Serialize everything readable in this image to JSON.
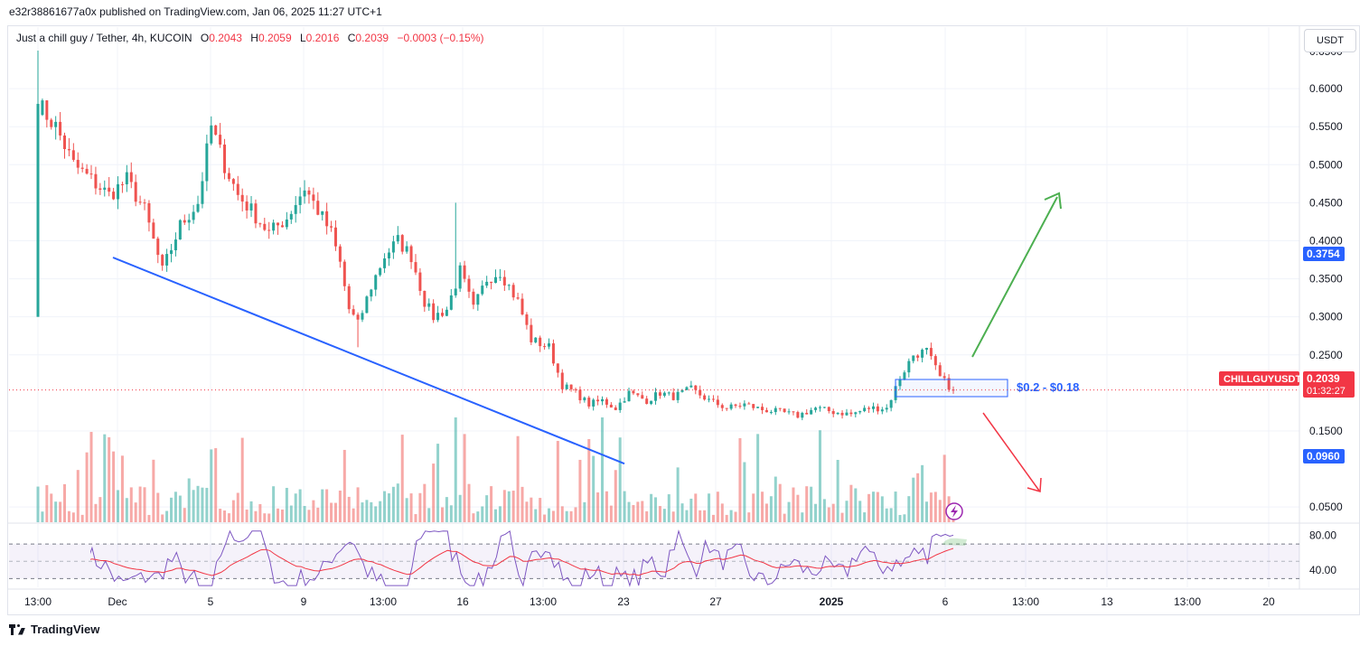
{
  "header": {
    "publish_line": "e32r38861677a0x published on TradingView.com, Jan 06, 2025 11:27 UTC+1"
  },
  "legend": {
    "symbol": "Just a chill guy / Tether, 4h, KUCOIN",
    "o_label": "O",
    "o": "0.2043",
    "h_label": "H",
    "h": "0.2059",
    "l_label": "L",
    "l": "0.2016",
    "c_label": "C",
    "c": "0.2039",
    "change": "−0.0003 (−0.15%)"
  },
  "currency_button": "USDT",
  "annotations": {
    "zone_label": "$0.2 - $0.18"
  },
  "price_badges": {
    "top": "0.3754",
    "symbol": "CHILLGUYUSDT",
    "last": "0.2039",
    "countdown": "01:32:27",
    "bottom": "0.0960"
  },
  "footer": {
    "brand": "TradingView"
  },
  "colors": {
    "up": "#26a69a",
    "down": "#ef5350",
    "trend": "#2962ff",
    "arrow_up": "#4caf50",
    "arrow_down": "#f23645",
    "rsi": "#7e57c2",
    "rsi_ma": "#f23645",
    "badge_blue": "#2962ff",
    "badge_red": "#f23645"
  },
  "chart_data": [
    {
      "type": "candlestick",
      "timeframe": "4h",
      "y_axis": {
        "ticks": [
          "0.6000",
          "0.5500",
          "0.5000",
          "0.4500",
          "0.4000",
          "0.3500",
          "0.3000",
          "0.2500",
          "0.1500",
          "0.0500"
        ],
        "ylim": [
          0.03,
          0.65
        ]
      },
      "x_axis": {
        "ticks": [
          "13:00",
          "Dec",
          "5",
          "9",
          "13:00",
          "16",
          "13:00",
          "23",
          "27",
          "2025",
          "6",
          "13:00",
          "13",
          "13:00",
          "20"
        ]
      },
      "last_price": 0.2039,
      "path_points": [
        [
          0,
          0.58
        ],
        [
          4,
          0.55
        ],
        [
          8,
          0.5
        ],
        [
          12,
          0.48
        ],
        [
          16,
          0.46
        ],
        [
          20,
          0.48
        ],
        [
          24,
          0.44
        ],
        [
          28,
          0.36
        ],
        [
          32,
          0.42
        ],
        [
          36,
          0.45
        ],
        [
          39,
          0.55
        ],
        [
          42,
          0.5
        ],
        [
          45,
          0.46
        ],
        [
          48,
          0.44
        ],
        [
          52,
          0.41
        ],
        [
          56,
          0.43
        ],
        [
          60,
          0.47
        ],
        [
          63,
          0.44
        ],
        [
          66,
          0.41
        ],
        [
          68,
          0.37
        ],
        [
          70,
          0.31
        ],
        [
          72,
          0.29
        ],
        [
          75,
          0.34
        ],
        [
          78,
          0.38
        ],
        [
          81,
          0.4
        ],
        [
          84,
          0.38
        ],
        [
          87,
          0.32
        ],
        [
          89,
          0.3
        ],
        [
          92,
          0.31
        ],
        [
          95,
          0.36
        ],
        [
          98,
          0.31
        ],
        [
          101,
          0.35
        ],
        [
          104,
          0.36
        ],
        [
          108,
          0.32
        ],
        [
          111,
          0.27
        ],
        [
          115,
          0.26
        ],
        [
          118,
          0.21
        ],
        [
          121,
          0.2
        ],
        [
          124,
          0.185
        ],
        [
          127,
          0.19
        ],
        [
          130,
          0.18
        ],
        [
          133,
          0.2
        ],
        [
          137,
          0.19
        ],
        [
          140,
          0.2
        ],
        [
          143,
          0.195
        ],
        [
          147,
          0.205
        ],
        [
          151,
          0.19
        ],
        [
          155,
          0.18
        ],
        [
          159,
          0.185
        ],
        [
          163,
          0.178
        ],
        [
          167,
          0.175
        ],
        [
          171,
          0.17
        ],
        [
          175,
          0.18
        ],
        [
          179,
          0.175
        ],
        [
          183,
          0.172
        ],
        [
          187,
          0.18
        ],
        [
          191,
          0.18
        ],
        [
          194,
          0.22
        ],
        [
          197,
          0.25
        ],
        [
          200,
          0.255
        ],
        [
          203,
          0.22
        ],
        [
          206,
          0.2039
        ]
      ]
    },
    {
      "type": "bar",
      "name": "volume"
    },
    {
      "type": "line",
      "name": "RSI",
      "y_axis": {
        "ticks": [
          "80.00",
          "40.00"
        ],
        "bands": [
          70,
          30
        ]
      }
    }
  ]
}
